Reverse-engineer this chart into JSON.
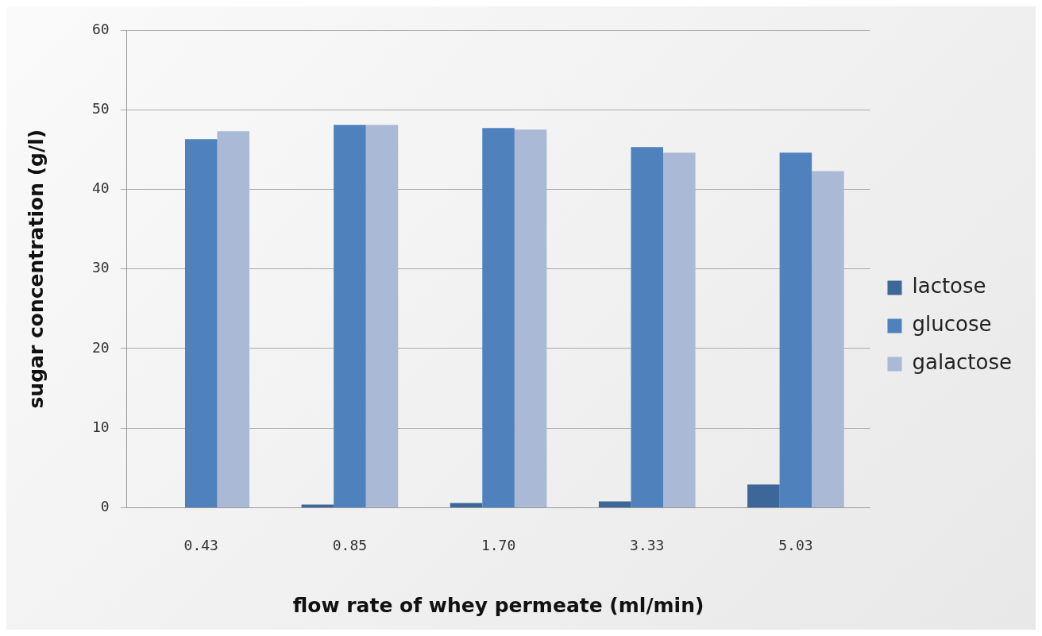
{
  "chart_data": {
    "type": "bar",
    "xlabel": "flow rate of whey permeate (ml/min)",
    "ylabel": "sugar concentration (g/l)",
    "categories": [
      "0.43",
      "0.85",
      "1.70",
      "3.33",
      "5.03"
    ],
    "series": [
      {
        "name": "lactose",
        "color": "#3d6699",
        "values": [
          0,
          0.4,
          0.6,
          0.8,
          2.9
        ]
      },
      {
        "name": "glucose",
        "color": "#4f81bd",
        "values": [
          46.3,
          48.1,
          47.7,
          45.3,
          44.6
        ]
      },
      {
        "name": "galactose",
        "color": "#aab9d6",
        "values": [
          47.3,
          48.1,
          47.5,
          44.6,
          42.3
        ]
      }
    ],
    "ylim": [
      0,
      60
    ],
    "yticks": [
      0,
      10,
      20,
      30,
      40,
      50,
      60
    ],
    "grid": "y",
    "legend": "right"
  }
}
